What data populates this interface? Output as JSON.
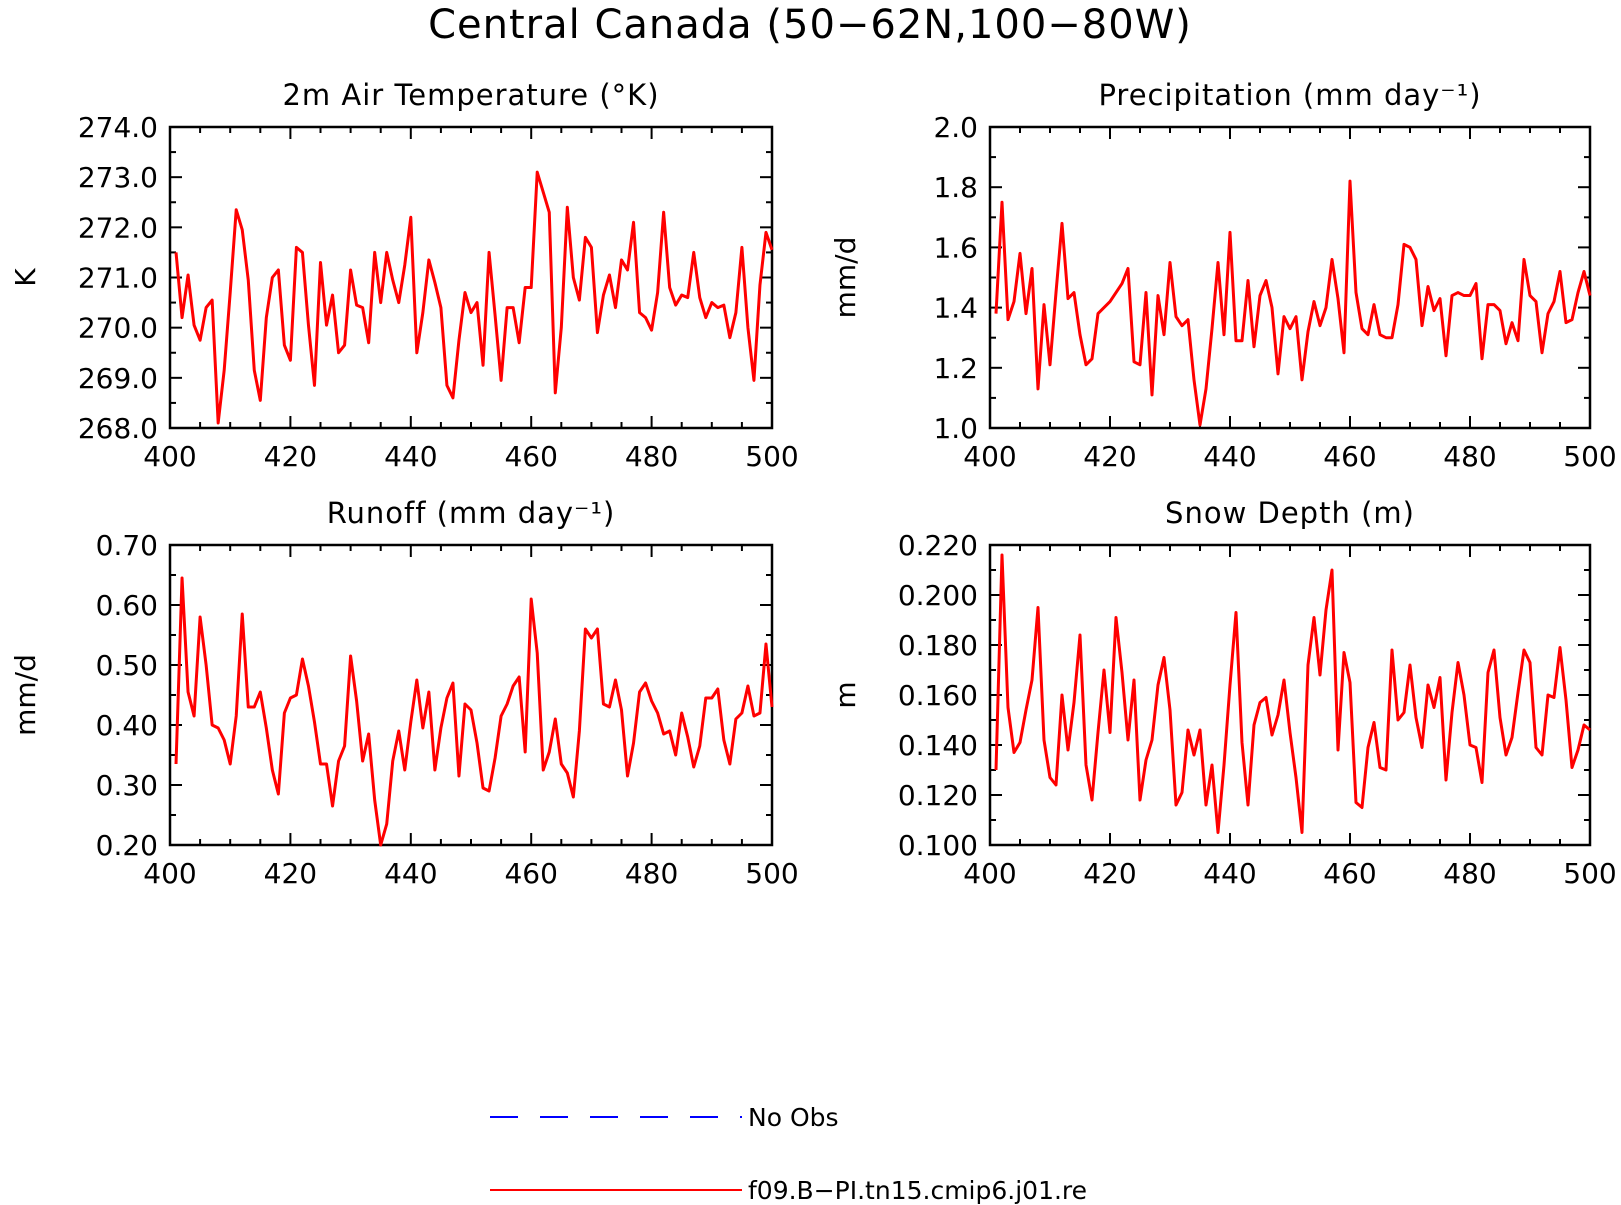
{
  "figure": {
    "title": "Central Canada (50−62N,100−80W)"
  },
  "legend": {
    "entries": [
      {
        "label": "No Obs",
        "color": "#0000ff",
        "style": "dashed"
      },
      {
        "label": "f09.B−PI.tn15.cmip6.j01.re",
        "color": "#ff0000",
        "style": "solid"
      }
    ]
  },
  "chart_data": [
    {
      "type": "line",
      "title": "2m Air Temperature (°K)",
      "ylabel": "K",
      "xlim": [
        400,
        500
      ],
      "ylim": [
        268.0,
        274.0
      ],
      "xticks": [
        400,
        420,
        440,
        460,
        480,
        500
      ],
      "yticks": [
        "268.0",
        "269.0",
        "270.0",
        "271.0",
        "272.0",
        "273.0",
        "274.0"
      ],
      "x_start": 401,
      "x_step": 1,
      "series": [
        {
          "name": "f09.B−PI.tn15.cmip6.j01.re",
          "color": "#ff0000",
          "values": [
            271.5,
            270.2,
            271.05,
            270.05,
            269.75,
            270.4,
            270.55,
            268.1,
            269.15,
            270.7,
            272.35,
            271.95,
            270.95,
            269.15,
            268.55,
            270.2,
            271.0,
            271.15,
            269.65,
            269.35,
            271.6,
            271.5,
            270.05,
            268.85,
            271.3,
            270.05,
            270.65,
            269.5,
            269.65,
            271.15,
            270.45,
            270.4,
            269.7,
            271.5,
            270.5,
            271.5,
            270.95,
            270.5,
            271.25,
            272.2,
            269.5,
            270.3,
            271.35,
            270.9,
            270.4,
            268.85,
            268.6,
            269.75,
            270.7,
            270.3,
            270.5,
            269.25,
            271.5,
            270.25,
            268.95,
            270.4,
            270.4,
            269.7,
            270.8,
            270.8,
            273.1,
            272.7,
            272.3,
            268.7,
            270.0,
            272.4,
            271.0,
            270.55,
            271.8,
            271.6,
            269.9,
            270.65,
            271.05,
            270.4,
            271.35,
            271.15,
            272.1,
            270.3,
            270.2,
            269.95,
            270.7,
            272.3,
            270.8,
            270.45,
            270.65,
            270.6,
            271.5,
            270.6,
            270.2,
            270.5,
            270.4,
            270.45,
            269.8,
            270.3,
            271.6,
            270.0,
            268.95,
            270.85,
            271.9,
            271.55
          ]
        }
      ]
    },
    {
      "type": "line",
      "title": "Precipitation (mm day⁻¹)",
      "ylabel": "mm/d",
      "xlim": [
        400,
        500
      ],
      "ylim": [
        1.0,
        2.0
      ],
      "xticks": [
        400,
        420,
        440,
        460,
        480,
        500
      ],
      "yticks": [
        "1.0",
        "1.2",
        "1.4",
        "1.6",
        "1.8",
        "2.0"
      ],
      "x_start": 401,
      "x_step": 1,
      "series": [
        {
          "name": "f09.B−PI.tn15.cmip6.j01.re",
          "color": "#ff0000",
          "values": [
            1.38,
            1.75,
            1.36,
            1.42,
            1.58,
            1.38,
            1.53,
            1.13,
            1.41,
            1.21,
            1.45,
            1.68,
            1.43,
            1.45,
            1.31,
            1.21,
            1.23,
            1.38,
            1.4,
            1.42,
            1.45,
            1.48,
            1.53,
            1.22,
            1.21,
            1.45,
            1.11,
            1.44,
            1.31,
            1.55,
            1.37,
            1.34,
            1.36,
            1.16,
            1.01,
            1.13,
            1.33,
            1.55,
            1.31,
            1.65,
            1.29,
            1.29,
            1.49,
            1.27,
            1.44,
            1.49,
            1.4,
            1.18,
            1.37,
            1.33,
            1.37,
            1.16,
            1.32,
            1.42,
            1.34,
            1.4,
            1.56,
            1.43,
            1.25,
            1.82,
            1.45,
            1.33,
            1.31,
            1.41,
            1.31,
            1.3,
            1.3,
            1.41,
            1.61,
            1.6,
            1.56,
            1.34,
            1.47,
            1.39,
            1.43,
            1.24,
            1.44,
            1.45,
            1.44,
            1.44,
            1.48,
            1.23,
            1.41,
            1.41,
            1.39,
            1.28,
            1.35,
            1.29,
            1.56,
            1.44,
            1.42,
            1.25,
            1.38,
            1.42,
            1.52,
            1.35,
            1.36,
            1.45,
            1.52,
            1.44
          ]
        }
      ]
    },
    {
      "type": "line",
      "title": "Runoff (mm day⁻¹)",
      "ylabel": "mm/d",
      "xlim": [
        400,
        500
      ],
      "ylim": [
        0.2,
        0.7
      ],
      "xticks": [
        400,
        420,
        440,
        460,
        480,
        500
      ],
      "yticks": [
        "0.20",
        "0.30",
        "0.40",
        "0.50",
        "0.60",
        "0.70"
      ],
      "x_start": 401,
      "x_step": 1,
      "series": [
        {
          "name": "f09.B−PI.tn15.cmip6.j01.re",
          "color": "#ff0000",
          "values": [
            0.335,
            0.645,
            0.455,
            0.415,
            0.58,
            0.5,
            0.4,
            0.395,
            0.375,
            0.335,
            0.415,
            0.585,
            0.43,
            0.43,
            0.455,
            0.395,
            0.325,
            0.285,
            0.42,
            0.445,
            0.45,
            0.51,
            0.465,
            0.405,
            0.335,
            0.335,
            0.265,
            0.34,
            0.365,
            0.515,
            0.44,
            0.34,
            0.385,
            0.275,
            0.2,
            0.235,
            0.34,
            0.39,
            0.325,
            0.405,
            0.475,
            0.395,
            0.455,
            0.325,
            0.395,
            0.445,
            0.47,
            0.315,
            0.435,
            0.425,
            0.37,
            0.295,
            0.29,
            0.345,
            0.415,
            0.435,
            0.465,
            0.48,
            0.355,
            0.61,
            0.52,
            0.325,
            0.355,
            0.41,
            0.335,
            0.32,
            0.28,
            0.39,
            0.56,
            0.545,
            0.56,
            0.435,
            0.43,
            0.475,
            0.425,
            0.315,
            0.37,
            0.455,
            0.47,
            0.44,
            0.42,
            0.385,
            0.39,
            0.35,
            0.42,
            0.38,
            0.33,
            0.365,
            0.445,
            0.445,
            0.46,
            0.375,
            0.335,
            0.41,
            0.42,
            0.465,
            0.415,
            0.42,
            0.535,
            0.43
          ]
        }
      ]
    },
    {
      "type": "line",
      "title": "Snow Depth (m)",
      "ylabel": "m",
      "xlim": [
        400,
        500
      ],
      "ylim": [
        0.1,
        0.22
      ],
      "xticks": [
        400,
        420,
        440,
        460,
        480,
        500
      ],
      "yticks": [
        "0.100",
        "0.120",
        "0.140",
        "0.160",
        "0.180",
        "0.200",
        "0.220"
      ],
      "x_start": 401,
      "x_step": 1,
      "series": [
        {
          "name": "f09.B−PI.tn15.cmip6.j01.re",
          "color": "#ff0000",
          "values": [
            0.13,
            0.216,
            0.155,
            0.137,
            0.141,
            0.154,
            0.166,
            0.195,
            0.142,
            0.127,
            0.124,
            0.16,
            0.138,
            0.157,
            0.184,
            0.132,
            0.118,
            0.145,
            0.17,
            0.145,
            0.191,
            0.169,
            0.142,
            0.166,
            0.118,
            0.134,
            0.142,
            0.164,
            0.175,
            0.154,
            0.116,
            0.121,
            0.146,
            0.136,
            0.146,
            0.116,
            0.132,
            0.105,
            0.132,
            0.164,
            0.193,
            0.141,
            0.116,
            0.148,
            0.157,
            0.159,
            0.144,
            0.152,
            0.166,
            0.145,
            0.127,
            0.105,
            0.172,
            0.191,
            0.168,
            0.194,
            0.21,
            0.138,
            0.177,
            0.165,
            0.117,
            0.115,
            0.139,
            0.149,
            0.131,
            0.13,
            0.178,
            0.15,
            0.153,
            0.172,
            0.151,
            0.139,
            0.164,
            0.155,
            0.167,
            0.126,
            0.153,
            0.173,
            0.16,
            0.14,
            0.139,
            0.125,
            0.169,
            0.178,
            0.151,
            0.136,
            0.143,
            0.161,
            0.178,
            0.173,
            0.139,
            0.136,
            0.16,
            0.159,
            0.179,
            0.158,
            0.131,
            0.138,
            0.148,
            0.146
          ]
        }
      ]
    }
  ]
}
